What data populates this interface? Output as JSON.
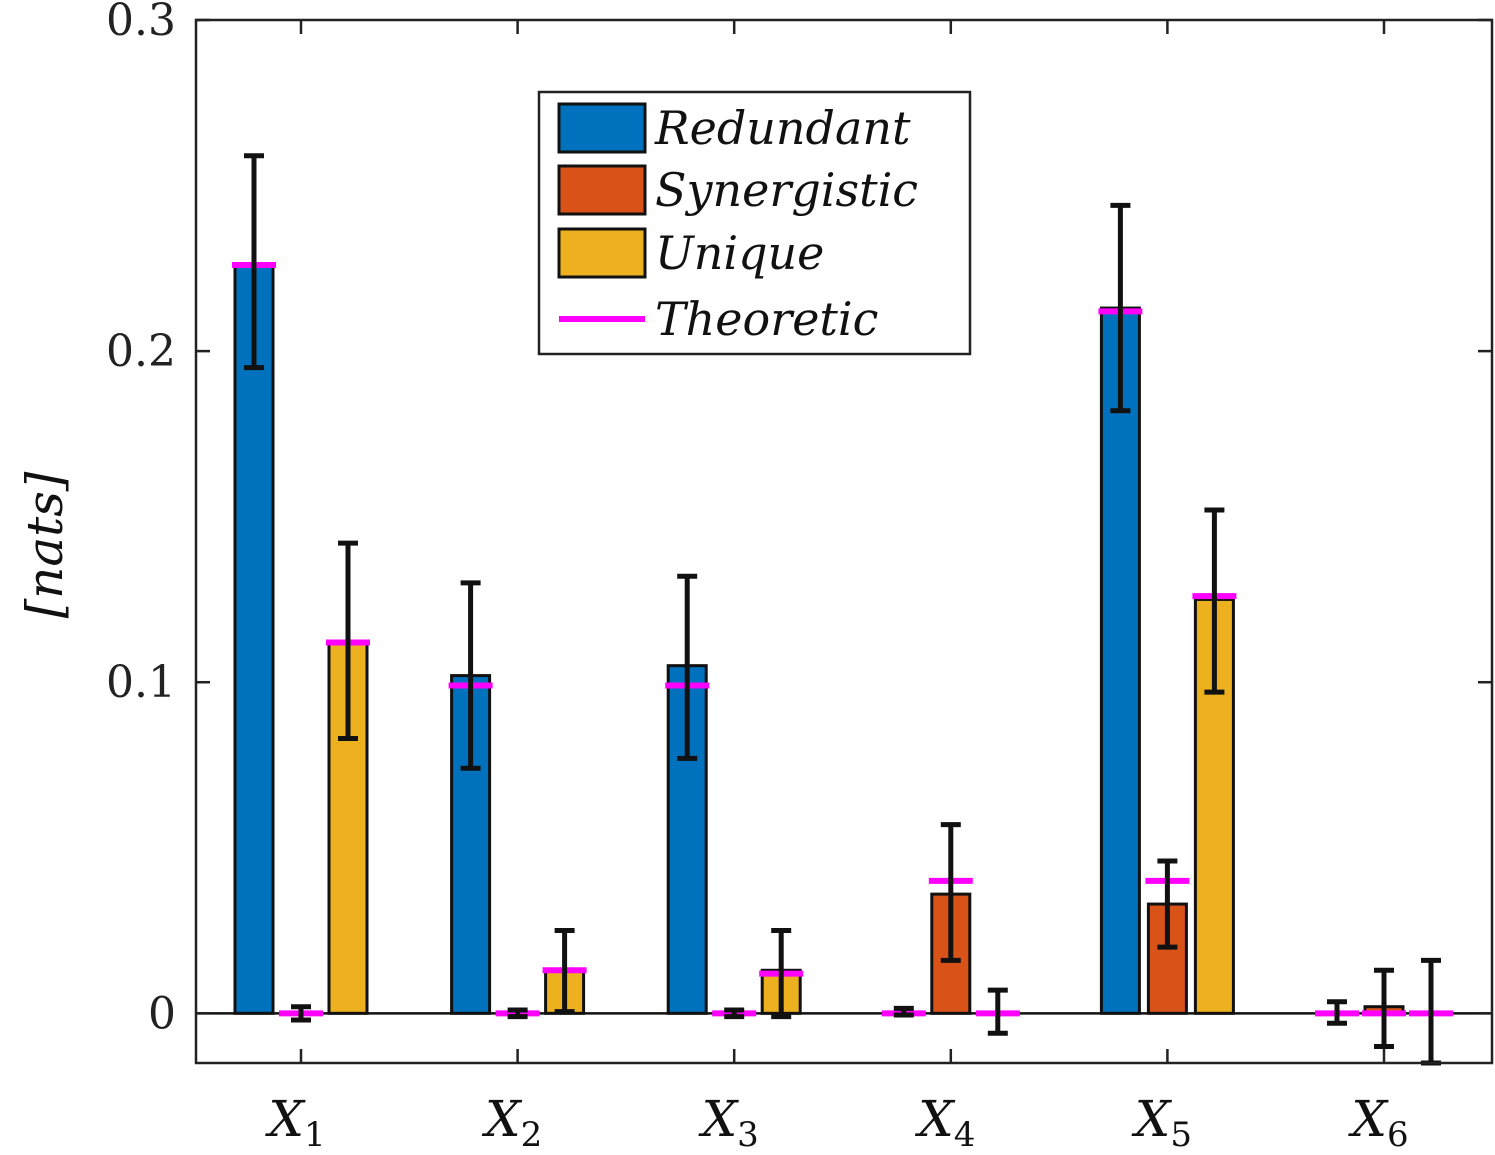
{
  "chart_data": {
    "type": "bar",
    "title": "",
    "xlabel": "",
    "ylabel": "[nats]",
    "ylim": [
      -0.015,
      0.3
    ],
    "yticks": [
      0,
      0.1,
      0.2,
      0.3
    ],
    "ytick_labels": [
      "0",
      "0.1",
      "0.2",
      "0.3"
    ],
    "categories": [
      {
        "main": "X",
        "sub": "1"
      },
      {
        "main": "X",
        "sub": "2"
      },
      {
        "main": "X",
        "sub": "3"
      },
      {
        "main": "X",
        "sub": "4"
      },
      {
        "main": "X",
        "sub": "5"
      },
      {
        "main": "X",
        "sub": "6"
      }
    ],
    "grid": false,
    "legend_position": "top-center",
    "series": [
      {
        "name": "Redundant",
        "color": "#0072BD",
        "values": [
          0.226,
          0.102,
          0.105,
          0.0,
          0.213,
          0.0
        ],
        "err_low": [
          0.195,
          0.074,
          0.077,
          -0.0005,
          0.182,
          -0.003
        ],
        "err_high": [
          0.259,
          0.13,
          0.132,
          0.0015,
          0.244,
          0.0035
        ],
        "theoretic": [
          0.226,
          0.099,
          0.099,
          0.0,
          0.212,
          0.0
        ]
      },
      {
        "name": "Synergistic",
        "color": "#D95319",
        "values": [
          0.0,
          0.0,
          0.0,
          0.036,
          0.033,
          0.002
        ],
        "err_low": [
          -0.002,
          -0.001,
          -0.001,
          0.016,
          0.02,
          -0.01
        ],
        "err_high": [
          0.002,
          0.001,
          0.001,
          0.057,
          0.046,
          0.013
        ],
        "theoretic": [
          0.0,
          0.0,
          0.0,
          0.04,
          0.04,
          0.0
        ]
      },
      {
        "name": "Unique",
        "color": "#EDB120",
        "values": [
          0.112,
          0.013,
          0.013,
          0.0,
          0.125,
          0.0
        ],
        "err_low": [
          0.083,
          0.0005,
          -0.001,
          -0.006,
          0.097,
          -0.015
        ],
        "err_high": [
          0.142,
          0.025,
          0.025,
          0.007,
          0.152,
          0.016
        ],
        "theoretic": [
          0.112,
          0.013,
          0.012,
          0.0,
          0.126,
          0.0
        ]
      }
    ],
    "theoretic_label": "Theoretic",
    "theoretic_color": "#FF00FF"
  }
}
